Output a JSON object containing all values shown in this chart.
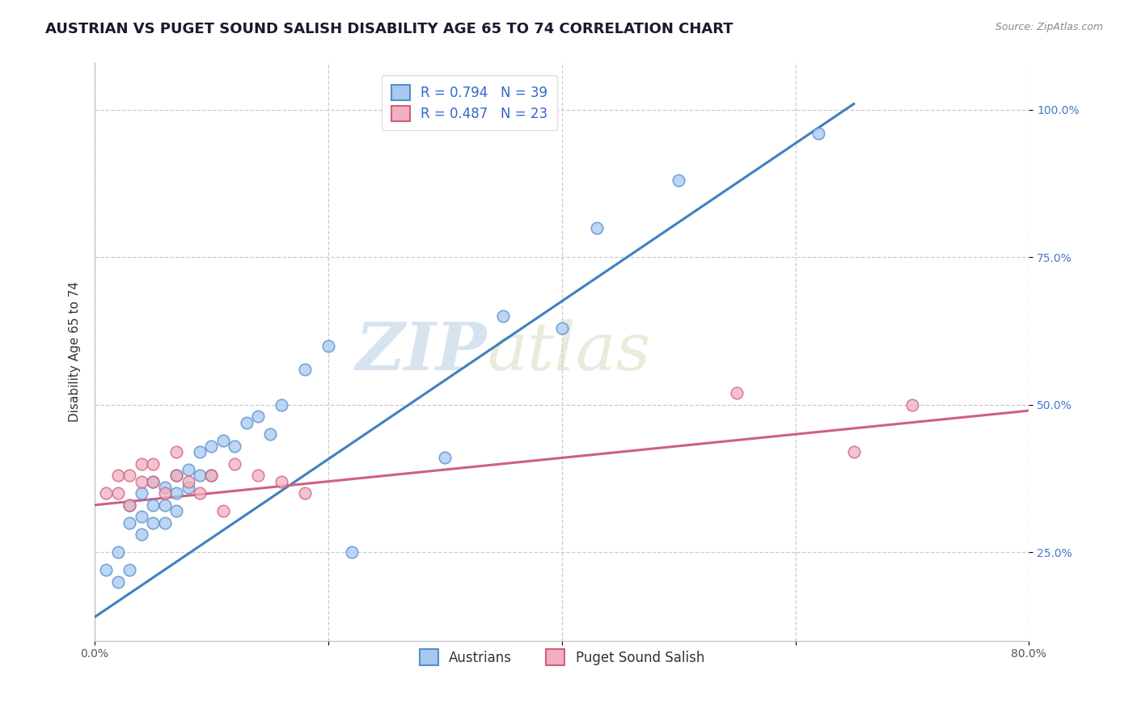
{
  "title": "AUSTRIAN VS PUGET SOUND SALISH DISABILITY AGE 65 TO 74 CORRELATION CHART",
  "source_text": "Source: ZipAtlas.com",
  "ylabel": "Disability Age 65 to 74",
  "watermark_zip": "ZIP",
  "watermark_atlas": "atlas",
  "xlim": [
    0.0,
    0.8
  ],
  "ylim": [
    0.1,
    1.08
  ],
  "xtick_positions": [
    0.0,
    0.2,
    0.4,
    0.6,
    0.8
  ],
  "xtick_labels": [
    "0.0%",
    "",
    "",
    "",
    "80.0%"
  ],
  "ytick_positions": [
    0.25,
    0.5,
    0.75,
    1.0
  ],
  "ytick_labels": [
    "25.0%",
    "50.0%",
    "75.0%",
    "100.0%"
  ],
  "blue_fill": "#a8c8f0",
  "blue_edge": "#5090d0",
  "pink_fill": "#f0b0c0",
  "pink_edge": "#d06080",
  "blue_line_color": "#4080c0",
  "pink_line_color": "#d06080",
  "legend_r_blue": "R = 0.794",
  "legend_n_blue": "N = 39",
  "legend_r_pink": "R = 0.487",
  "legend_n_pink": "N = 23",
  "legend_label_blue": "Austrians",
  "legend_label_pink": "Puget Sound Salish",
  "blue_x": [
    0.01,
    0.02,
    0.02,
    0.03,
    0.03,
    0.03,
    0.04,
    0.04,
    0.04,
    0.05,
    0.05,
    0.05,
    0.06,
    0.06,
    0.06,
    0.07,
    0.07,
    0.07,
    0.08,
    0.08,
    0.09,
    0.09,
    0.1,
    0.1,
    0.11,
    0.12,
    0.13,
    0.14,
    0.15,
    0.16,
    0.18,
    0.2,
    0.22,
    0.3,
    0.35,
    0.4,
    0.43,
    0.5,
    0.62
  ],
  "blue_y": [
    0.22,
    0.2,
    0.25,
    0.22,
    0.3,
    0.33,
    0.28,
    0.31,
    0.35,
    0.3,
    0.33,
    0.37,
    0.3,
    0.33,
    0.36,
    0.32,
    0.35,
    0.38,
    0.36,
    0.39,
    0.38,
    0.42,
    0.38,
    0.43,
    0.44,
    0.43,
    0.47,
    0.48,
    0.45,
    0.5,
    0.56,
    0.6,
    0.25,
    0.41,
    0.65,
    0.63,
    0.8,
    0.88,
    0.96
  ],
  "pink_x": [
    0.01,
    0.02,
    0.02,
    0.03,
    0.03,
    0.04,
    0.04,
    0.05,
    0.05,
    0.06,
    0.07,
    0.07,
    0.08,
    0.09,
    0.1,
    0.11,
    0.12,
    0.14,
    0.16,
    0.18,
    0.55,
    0.65,
    0.7
  ],
  "pink_y": [
    0.35,
    0.35,
    0.38,
    0.33,
    0.38,
    0.37,
    0.4,
    0.37,
    0.4,
    0.35,
    0.38,
    0.42,
    0.37,
    0.35,
    0.38,
    0.32,
    0.4,
    0.38,
    0.37,
    0.35,
    0.52,
    0.42,
    0.5
  ],
  "blue_trendline_x": [
    0.0,
    0.65
  ],
  "blue_trendline_y": [
    0.14,
    1.01
  ],
  "pink_trendline_x": [
    0.0,
    0.8
  ],
  "pink_trendline_y": [
    0.33,
    0.49
  ],
  "title_fontsize": 13,
  "axis_label_fontsize": 11,
  "tick_fontsize": 10,
  "legend_fontsize": 12
}
